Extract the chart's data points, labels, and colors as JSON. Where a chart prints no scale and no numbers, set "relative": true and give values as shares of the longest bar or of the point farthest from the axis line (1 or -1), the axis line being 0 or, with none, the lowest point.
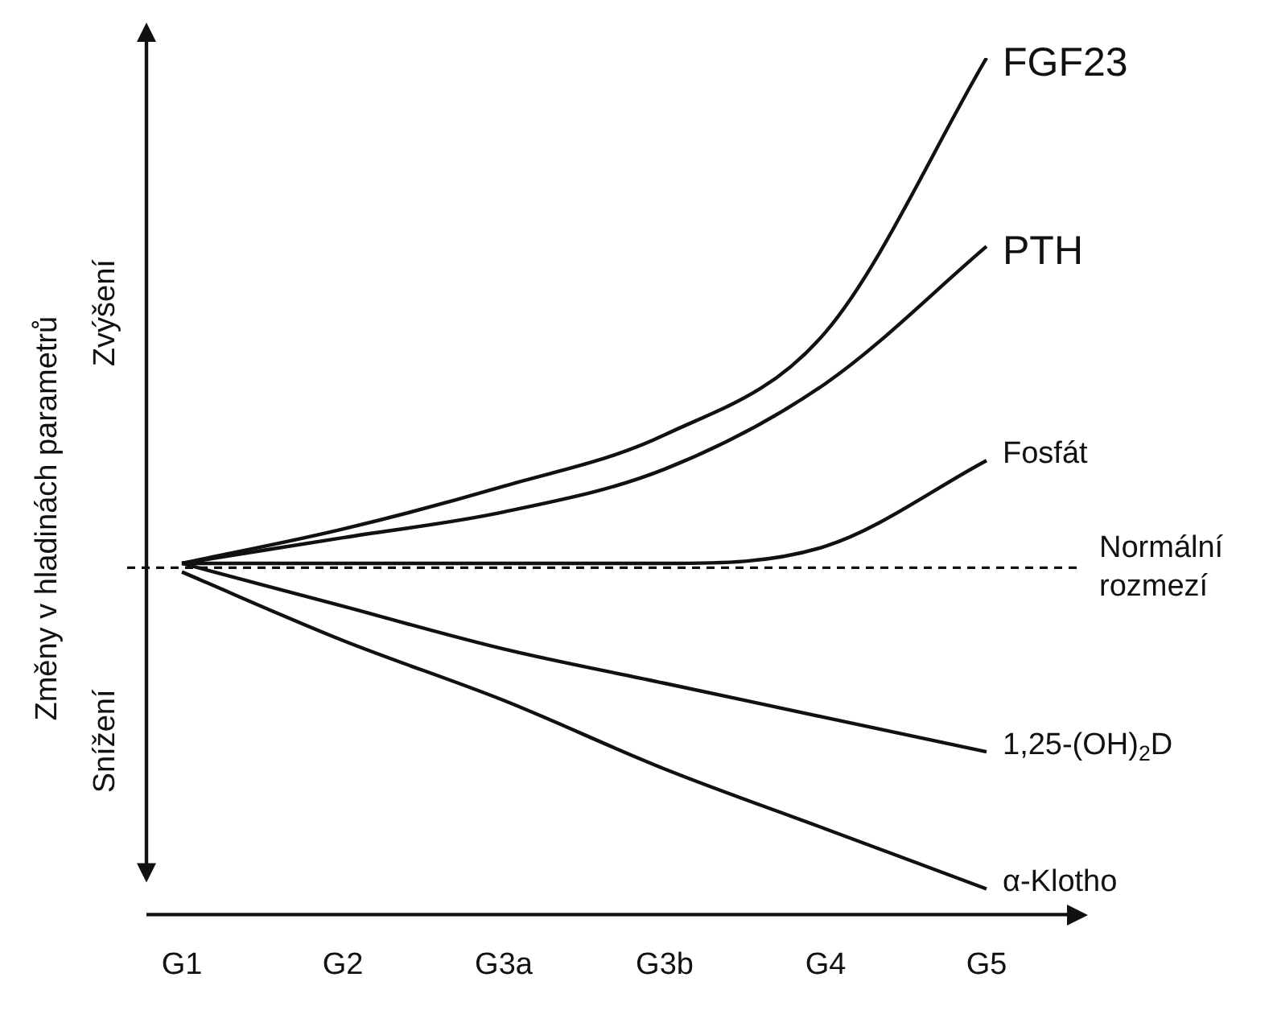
{
  "chart_data": {
    "type": "line",
    "relative": true,
    "ylabel": "Změny v hladinách parametrů",
    "categories": [
      "G1",
      "G2",
      "G3a",
      "G3b",
      "G4",
      "G5"
    ],
    "series": [
      {
        "name": "FGF23",
        "color": "#111111",
        "values": [
          0.41,
          0.45,
          0.5,
          0.56,
          0.68,
          1
        ]
      },
      {
        "name": "PTH",
        "color": "#111111",
        "values": [
          0.41,
          0.44,
          0.47,
          0.52,
          0.62,
          0.78
        ]
      },
      {
        "name": "Fosfát",
        "color": "#111111",
        "values": [
          0.41,
          0.41,
          0.41,
          0.41,
          0.43,
          0.53
        ]
      },
      {
        "name": "1,25-(OH)$_{2}$D",
        "color": "#111111",
        "values": [
          0.41,
          0.36,
          0.31,
          0.27,
          0.23,
          0.19
        ]
      },
      {
        "name": "α-Klotho",
        "color": "#111111",
        "values": [
          0.4,
          0.32,
          0.25,
          0.17,
          0.1,
          0.03
        ]
      }
    ],
    "ref_lines": [
      {
        "axis": "y",
        "value": 0.405,
        "label": "Normální rozmezí",
        "color": "#111111",
        "line_style": "dashed"
      }
    ],
    "annotations": [
      "Zvýšení",
      "Snížení"
    ],
    "legend": false,
    "grid": false,
    "marker": "none",
    "line_style": "solid"
  }
}
